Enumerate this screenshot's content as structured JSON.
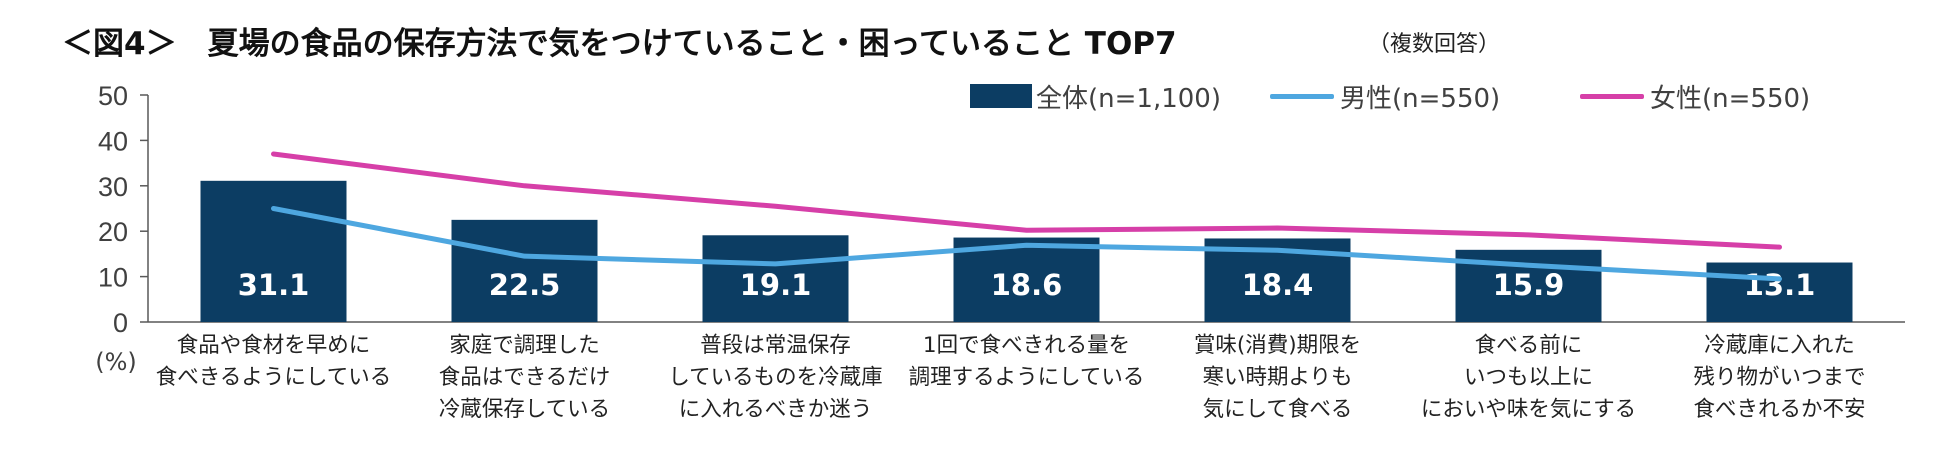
{
  "title": "＜図4＞　夏場の食品の保存方法で気をつけていること・困っていること TOP7",
  "subtitle": "（複数回答）",
  "colors": {
    "bar": "#0c3d63",
    "male": "#4ea7e0",
    "female": "#d63fa8",
    "axis": "#595959",
    "label": "#ffffff"
  },
  "chart_data": {
    "type": "bar",
    "title": "＜図4＞　夏場の食品の保存方法で気をつけていること・困っていること TOP7",
    "ylabel": "(%)",
    "ylim": [
      0,
      50
    ],
    "yticks": [
      0,
      10,
      20,
      30,
      40,
      50
    ],
    "legend_position": "top-right",
    "grid": false,
    "categories": [
      [
        "食品や食材を早めに",
        "食べきるようにしている"
      ],
      [
        "家庭で調理した",
        "食品はできるだけ",
        "冷蔵保存している"
      ],
      [
        "普段は常温保存",
        "しているものを冷蔵庫",
        "に入れるべきか迷う"
      ],
      [
        "1回で食べきれる量を",
        "調理するようにしている"
      ],
      [
        "賞味(消費)期限を",
        "寒い時期よりも",
        "気にして食べる"
      ],
      [
        "食べる前に",
        "いつも以上に",
        "においや味を気にする"
      ],
      [
        "冷蔵庫に入れた",
        "残り物がいつまで",
        "食べきれるか不安"
      ]
    ],
    "series": [
      {
        "name": "全体(n=1,100)",
        "type": "bar",
        "values": [
          31.1,
          22.5,
          19.1,
          18.6,
          18.4,
          15.9,
          13.1
        ],
        "labels": [
          "31.1",
          "22.5",
          "19.1",
          "18.6",
          "18.4",
          "15.9",
          "13.1"
        ]
      },
      {
        "name": "男性(n=550)",
        "type": "line",
        "values": [
          25.0,
          14.5,
          12.8,
          16.9,
          15.8,
          12.5,
          9.5
        ]
      },
      {
        "name": "女性(n=550)",
        "type": "line",
        "values": [
          37.0,
          30.0,
          25.5,
          20.2,
          20.7,
          19.2,
          16.5
        ]
      }
    ]
  }
}
